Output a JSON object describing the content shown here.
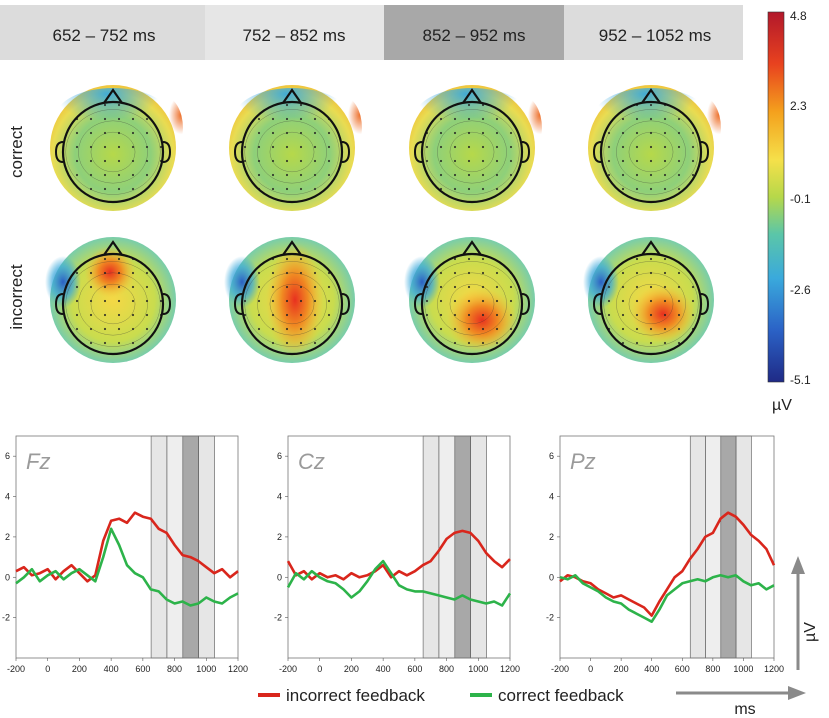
{
  "time_windows": [
    {
      "label": "652 – 752 ms",
      "color": "#dcdcdc"
    },
    {
      "label": "752 – 852 ms",
      "color": "#e6e6e6"
    },
    {
      "label": "852 – 952 ms",
      "color": "#a8a8a8"
    },
    {
      "label": "952 – 1052 ms",
      "color": "#dcdcdc"
    }
  ],
  "row_labels": [
    "correct",
    "incorrect"
  ],
  "colorbar": {
    "ticks": [
      "4.8",
      "2.3",
      "-0.1",
      "-2.6",
      "-5.1"
    ],
    "unit": "µV",
    "colors": [
      "#b2182b",
      "#e8421f",
      "#f4a11d",
      "#f5e04a",
      "#b6d84a",
      "#5bc6a8",
      "#3aa9dc",
      "#2b62c6",
      "#1f2a86"
    ]
  },
  "legend": {
    "incorrect": "incorrect feedback",
    "correct": "correct feedback",
    "incorrect_color": "#d9261c",
    "correct_color": "#2db34a"
  },
  "axis_arrows": {
    "y_label": "µV",
    "x_label": "ms"
  },
  "chart_data": [
    {
      "type": "line",
      "title": "Fz",
      "xlim": [
        -200,
        1200
      ],
      "ylim": [
        -4,
        7
      ],
      "xticks": [
        -200,
        0,
        200,
        400,
        600,
        800,
        1000,
        1200
      ],
      "yticks": [
        6,
        4,
        2,
        0,
        -2
      ],
      "highlight_windows": [
        [
          652,
          752
        ],
        [
          752,
          852
        ],
        [
          852,
          952
        ],
        [
          952,
          1052
        ]
      ],
      "series": [
        {
          "name": "incorrect feedback",
          "x": [
            -200,
            -150,
            -100,
            -50,
            0,
            50,
            100,
            150,
            200,
            250,
            300,
            350,
            400,
            450,
            500,
            550,
            600,
            650,
            700,
            750,
            800,
            850,
            900,
            950,
            1000,
            1050,
            1100,
            1150,
            1200
          ],
          "values": [
            0.3,
            0.5,
            0.1,
            0.2,
            0.4,
            -0.1,
            0.3,
            0.6,
            0.2,
            -0.2,
            0.1,
            1.8,
            2.8,
            2.9,
            2.7,
            3.2,
            3.0,
            2.9,
            2.4,
            2.2,
            1.6,
            1.1,
            1.0,
            0.8,
            0.5,
            0.2,
            0.4,
            0.0,
            0.3
          ]
        },
        {
          "name": "correct feedback",
          "x": [
            -200,
            -150,
            -100,
            -50,
            0,
            50,
            100,
            150,
            200,
            250,
            300,
            350,
            400,
            450,
            500,
            550,
            600,
            650,
            700,
            750,
            800,
            850,
            900,
            950,
            1000,
            1050,
            1100,
            1150,
            1200
          ],
          "values": [
            -0.3,
            0.0,
            0.4,
            -0.2,
            0.1,
            0.3,
            -0.1,
            0.2,
            0.4,
            0.1,
            -0.2,
            1.0,
            2.4,
            1.6,
            0.6,
            0.2,
            0.0,
            -0.6,
            -0.7,
            -1.1,
            -1.3,
            -1.2,
            -1.4,
            -1.3,
            -1.0,
            -1.2,
            -1.3,
            -1.0,
            -0.8
          ]
        }
      ]
    },
    {
      "type": "line",
      "title": "Cz",
      "xlim": [
        -200,
        1200
      ],
      "ylim": [
        -4,
        7
      ],
      "xticks": [
        -200,
        0,
        200,
        400,
        600,
        800,
        1000,
        1200
      ],
      "yticks": [
        6,
        4,
        2,
        0,
        -2
      ],
      "highlight_windows": [
        [
          652,
          752
        ],
        [
          752,
          852
        ],
        [
          852,
          952
        ],
        [
          952,
          1052
        ]
      ],
      "series": [
        {
          "name": "incorrect feedback",
          "x": [
            -200,
            -150,
            -100,
            -50,
            0,
            50,
            100,
            150,
            200,
            250,
            300,
            350,
            400,
            450,
            500,
            550,
            600,
            650,
            700,
            750,
            800,
            850,
            900,
            950,
            1000,
            1050,
            1100,
            1150,
            1200
          ],
          "values": [
            0.8,
            0.1,
            0.3,
            -0.1,
            0.2,
            0.0,
            0.1,
            -0.1,
            0.2,
            0.0,
            0.1,
            0.3,
            0.6,
            0.0,
            0.3,
            0.1,
            0.3,
            0.6,
            0.8,
            1.3,
            1.9,
            2.2,
            2.3,
            2.2,
            1.8,
            1.2,
            0.8,
            0.5,
            0.9
          ]
        },
        {
          "name": "correct feedback",
          "x": [
            -200,
            -150,
            -100,
            -50,
            0,
            50,
            100,
            150,
            200,
            250,
            300,
            350,
            400,
            450,
            500,
            550,
            600,
            650,
            700,
            750,
            800,
            850,
            900,
            950,
            1000,
            1050,
            1100,
            1150,
            1200
          ],
          "values": [
            -0.5,
            0.2,
            -0.1,
            0.3,
            0.0,
            -0.2,
            -0.3,
            -0.6,
            -1.0,
            -0.7,
            -0.2,
            0.4,
            0.8,
            0.2,
            -0.4,
            -0.6,
            -0.7,
            -0.7,
            -0.8,
            -0.9,
            -1.0,
            -1.1,
            -0.9,
            -1.1,
            -1.2,
            -1.3,
            -1.2,
            -1.4,
            -0.8
          ]
        }
      ]
    },
    {
      "type": "line",
      "title": "Pz",
      "xlim": [
        -200,
        1200
      ],
      "ylim": [
        -4,
        7
      ],
      "xticks": [
        -200,
        0,
        200,
        400,
        600,
        800,
        1000,
        1200
      ],
      "yticks": [
        6,
        4,
        2,
        0,
        -2
      ],
      "highlight_windows": [
        [
          652,
          752
        ],
        [
          752,
          852
        ],
        [
          852,
          952
        ],
        [
          952,
          1052
        ]
      ],
      "series": [
        {
          "name": "incorrect feedback",
          "x": [
            -200,
            -150,
            -100,
            -50,
            0,
            50,
            100,
            150,
            200,
            250,
            300,
            350,
            400,
            450,
            500,
            550,
            600,
            650,
            700,
            750,
            800,
            850,
            900,
            950,
            1000,
            1050,
            1100,
            1150,
            1200
          ],
          "values": [
            -0.2,
            0.1,
            0.0,
            -0.2,
            -0.3,
            -0.6,
            -0.8,
            -1.0,
            -0.9,
            -1.1,
            -1.3,
            -1.5,
            -1.9,
            -1.2,
            -0.6,
            0.0,
            0.3,
            0.9,
            1.4,
            2.0,
            2.2,
            2.9,
            3.2,
            3.0,
            2.6,
            2.1,
            1.8,
            1.4,
            0.6
          ]
        },
        {
          "name": "correct feedback",
          "x": [
            -200,
            -150,
            -100,
            -50,
            0,
            50,
            100,
            150,
            200,
            250,
            300,
            350,
            400,
            450,
            500,
            550,
            600,
            650,
            700,
            750,
            800,
            850,
            900,
            950,
            1000,
            1050,
            1100,
            1150,
            1200
          ],
          "values": [
            0.0,
            -0.1,
            0.1,
            -0.3,
            -0.5,
            -0.7,
            -1.0,
            -1.2,
            -1.3,
            -1.6,
            -1.8,
            -2.0,
            -2.2,
            -1.6,
            -0.9,
            -0.6,
            -0.3,
            -0.2,
            -0.1,
            -0.2,
            0.0,
            0.1,
            0.0,
            0.1,
            -0.2,
            -0.4,
            -0.3,
            -0.6,
            -0.4
          ]
        }
      ]
    }
  ]
}
